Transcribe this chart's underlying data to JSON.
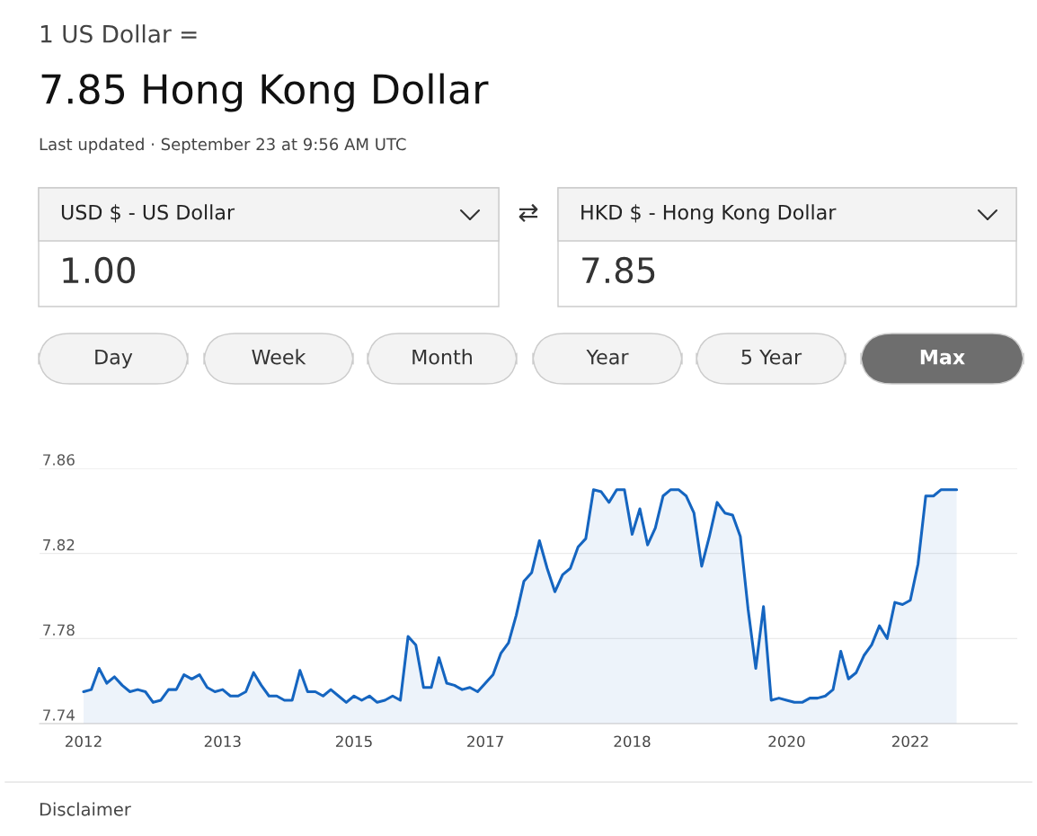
{
  "chart_data": {
    "type": "area",
    "title": "1 US Dollar =",
    "subtitle": "7.85 Hong Kong Dollar",
    "annotations": [
      "Last updated · September 23 at 9:56 AM UTC",
      "USD $ - US Dollar",
      "1.00",
      "⇄",
      "HKD $ - Hong Kong Dollar",
      "7.85",
      "Day",
      "Week",
      "Month",
      "Year",
      "5 Year",
      "Max",
      "Disclaimer"
    ],
    "categories": [
      "2012",
      null,
      null,
      null,
      null,
      null,
      null,
      null,
      null,
      null,
      null,
      null,
      null,
      null,
      null,
      null,
      null,
      null,
      "2013",
      null,
      null,
      null,
      null,
      null,
      null,
      null,
      null,
      null,
      null,
      null,
      null,
      null,
      null,
      null,
      null,
      "2015",
      null,
      null,
      null,
      null,
      null,
      null,
      null,
      null,
      null,
      null,
      null,
      null,
      null,
      null,
      null,
      null,
      "2017",
      null,
      null,
      null,
      null,
      null,
      null,
      null,
      null,
      null,
      null,
      null,
      null,
      null,
      null,
      null,
      null,
      null,
      null,
      "2018",
      null,
      null,
      null,
      null,
      null,
      null,
      null,
      null,
      null,
      null,
      null,
      null,
      null,
      null,
      null,
      null,
      null,
      null,
      null,
      "2020",
      null,
      null,
      null,
      null,
      null,
      null,
      null,
      null,
      null,
      null,
      null,
      null,
      null,
      null,
      null,
      "2022",
      null,
      null,
      null,
      null,
      null,
      null
    ],
    "series": [
      {
        "color": "#1565c0",
        "values": [
          7.755,
          7.756,
          7.766,
          7.759,
          7.762,
          7.758,
          7.755,
          7.756,
          7.755,
          7.75,
          7.751,
          7.756,
          7.756,
          7.763,
          7.761,
          7.763,
          7.757,
          7.755,
          7.756,
          7.753,
          7.753,
          7.755,
          7.764,
          7.758,
          7.753,
          7.753,
          7.751,
          7.751,
          7.765,
          7.755,
          7.755,
          7.753,
          7.756,
          7.753,
          7.75,
          7.753,
          7.751,
          7.753,
          7.75,
          7.751,
          7.753,
          7.751,
          7.781,
          7.777,
          7.757,
          7.757,
          7.771,
          7.759,
          7.758,
          7.756,
          7.757,
          7.755,
          7.759,
          7.763,
          7.773,
          7.778,
          7.791,
          7.807,
          7.811,
          7.826,
          7.813,
          7.802,
          7.81,
          7.813,
          7.823,
          7.827,
          7.85,
          7.849,
          7.844,
          7.85,
          7.85,
          7.829,
          7.841,
          7.824,
          7.832,
          7.847,
          7.85,
          7.85,
          7.847,
          7.839,
          7.814,
          7.828,
          7.844,
          7.839,
          7.838,
          7.828,
          7.794,
          7.766,
          7.795,
          7.751,
          7.752,
          7.751,
          7.75,
          7.75,
          7.752,
          7.752,
          7.753,
          7.756,
          7.774,
          7.761,
          7.764,
          7.772,
          7.777,
          7.786,
          7.78,
          7.797,
          7.796,
          7.798,
          7.815,
          7.847,
          7.847,
          7.85,
          7.85,
          7.85
        ]
      }
    ],
    "ylim": [
      7.74,
      7.86
    ],
    "yticks": [
      7.74,
      7.78,
      7.82,
      7.86
    ],
    "grid": "y",
    "legend": false
  }
}
